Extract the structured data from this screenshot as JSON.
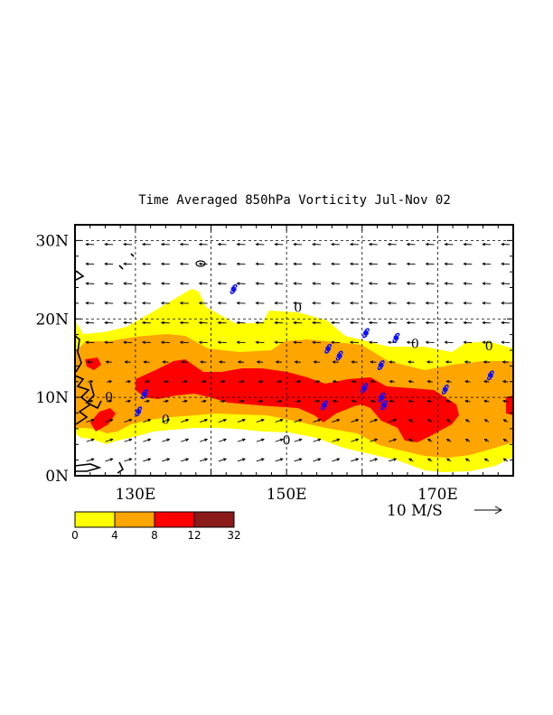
{
  "title": "Time Averaged 850hPa Vorticity  Jul-Nov  02",
  "map": {
    "lon_range": [
      122,
      180
    ],
    "lat_range": [
      0,
      32
    ],
    "lon_ticks": [
      {
        "value": 130,
        "label": "130E"
      },
      {
        "value": 150,
        "label": "150E"
      },
      {
        "value": 170,
        "label": "170E"
      }
    ],
    "lat_ticks": [
      {
        "value": 0,
        "label": "0N"
      },
      {
        "value": 10,
        "label": "10N"
      },
      {
        "value": 20,
        "label": "20N"
      },
      {
        "value": 30,
        "label": "30N"
      }
    ],
    "grid_lons": [
      130,
      140,
      150,
      160,
      170
    ],
    "grid_lats": [
      10,
      20,
      30
    ],
    "grid": true
  },
  "contour_labels": [
    {
      "text": "0",
      "lon": 151.5,
      "lat": 20.9
    },
    {
      "text": "0",
      "lon": 167.0,
      "lat": 16.3
    },
    {
      "text": "0",
      "lon": 176.8,
      "lat": 16.0
    },
    {
      "text": "0",
      "lon": 126.5,
      "lat": 9.5
    },
    {
      "text": "0",
      "lon": 134.0,
      "lat": 6.6
    },
    {
      "text": "0",
      "lon": 150.0,
      "lat": 4.0
    }
  ],
  "legend": {
    "levels": [
      "0",
      "4",
      "8",
      "12",
      "32"
    ],
    "colors": [
      "#ffff00",
      "#ffa500",
      "#ff0000",
      "#8b1a1a"
    ]
  },
  "vector_reference": {
    "label": "10 M/S"
  },
  "typhoon_symbols": [
    {
      "lon": 143.0,
      "lat": 23.8
    },
    {
      "lon": 155.5,
      "lat": 16.2
    },
    {
      "lon": 157.0,
      "lat": 15.3
    },
    {
      "lon": 160.5,
      "lat": 18.2
    },
    {
      "lon": 164.5,
      "lat": 17.6
    },
    {
      "lon": 162.5,
      "lat": 14.1
    },
    {
      "lon": 160.3,
      "lat": 11.2
    },
    {
      "lon": 162.6,
      "lat": 10.0
    },
    {
      "lon": 162.9,
      "lat": 9.0
    },
    {
      "lon": 155.0,
      "lat": 9.0
    },
    {
      "lon": 171.0,
      "lat": 11.0
    },
    {
      "lon": 177.0,
      "lat": 12.8
    },
    {
      "lon": 131.2,
      "lat": 10.4
    },
    {
      "lon": 130.4,
      "lat": 8.2
    }
  ]
}
